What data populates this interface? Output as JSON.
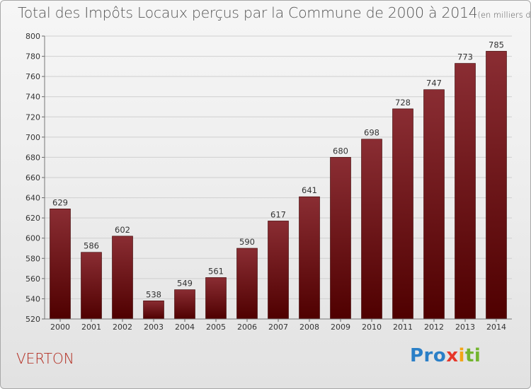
{
  "chart_data": {
    "type": "bar",
    "title": "Total des Impôts Locaux perçus par la Commune de 2000 à 2014",
    "unit": "(en milliers d'€)",
    "categories": [
      "2000",
      "2001",
      "2002",
      "2003",
      "2004",
      "2005",
      "2006",
      "2007",
      "2008",
      "2009",
      "2010",
      "2011",
      "2012",
      "2013",
      "2014"
    ],
    "values": [
      629,
      586,
      602,
      538,
      549,
      561,
      590,
      617,
      641,
      680,
      698,
      728,
      747,
      773,
      785
    ],
    "value_labels": [
      "629",
      "586",
      "602",
      "538",
      "549",
      "561",
      "590",
      "617",
      "641",
      "680",
      "698",
      "728",
      "747",
      "773",
      "785"
    ],
    "ylim": [
      520,
      800
    ],
    "yticks": [
      "520",
      "540",
      "560",
      "580",
      "600",
      "620",
      "640",
      "660",
      "680",
      "700",
      "720",
      "740",
      "760",
      "780",
      "800"
    ],
    "xlabel": "",
    "ylabel": "",
    "grid": true,
    "bar_color_top": "#8a2d33",
    "bar_color_bottom": "#4f0000"
  },
  "footer": {
    "commune": "VERTON",
    "logo": [
      "Pro",
      "x",
      "i",
      "ti"
    ]
  }
}
